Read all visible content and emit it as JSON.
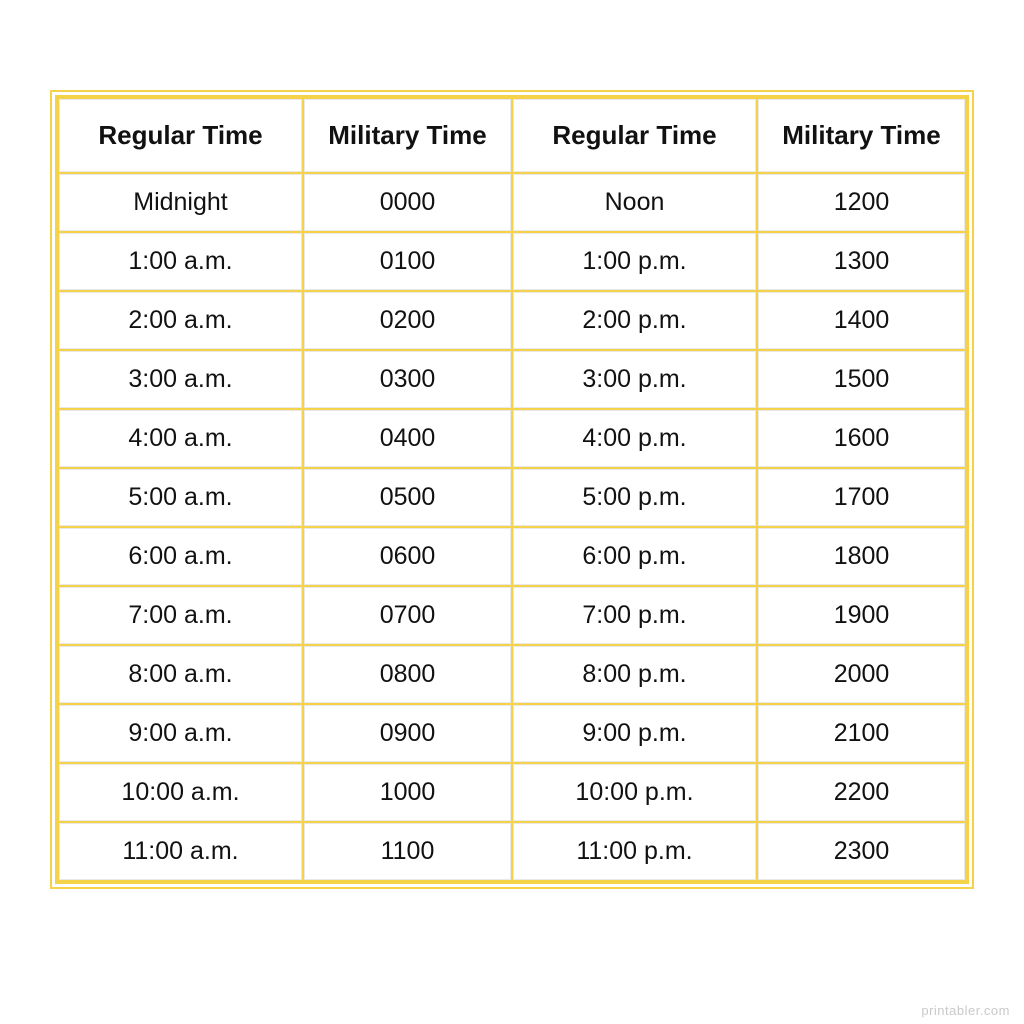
{
  "table": {
    "border_color": "#f4d24a",
    "cell_border_color": "#e8e8e8",
    "background_color": "#ffffff",
    "header_fontsize": 26,
    "body_fontsize": 25,
    "header_fontweight": "bold",
    "font_family": "Comic Sans MS",
    "columns": [
      {
        "label": "Regular Time",
        "width_pct": 27
      },
      {
        "label": "Military Time",
        "width_pct": 23
      },
      {
        "label": "Regular Time",
        "width_pct": 27
      },
      {
        "label": "Military Time",
        "width_pct": 23
      }
    ],
    "rows": [
      [
        "Midnight",
        "0000",
        "Noon",
        "1200"
      ],
      [
        "1:00 a.m.",
        "0100",
        "1:00 p.m.",
        "1300"
      ],
      [
        "2:00 a.m.",
        "0200",
        "2:00 p.m.",
        "1400"
      ],
      [
        "3:00 a.m.",
        "0300",
        "3:00 p.m.",
        "1500"
      ],
      [
        "4:00 a.m.",
        "0400",
        "4:00 p.m.",
        "1600"
      ],
      [
        "5:00 a.m.",
        "0500",
        "5:00 p.m.",
        "1700"
      ],
      [
        "6:00 a.m.",
        "0600",
        "6:00 p.m.",
        "1800"
      ],
      [
        "7:00 a.m.",
        "0700",
        "7:00 p.m.",
        "1900"
      ],
      [
        "8:00 a.m.",
        "0800",
        "8:00 p.m.",
        "2000"
      ],
      [
        "9:00 a.m.",
        "0900",
        "9:00 p.m.",
        "2100"
      ],
      [
        "10:00 a.m.",
        "1000",
        "10:00 p.m.",
        "2200"
      ],
      [
        "11:00 a.m.",
        "1100",
        "11:00 p.m.",
        "2300"
      ]
    ]
  },
  "watermark": "printabler.com"
}
